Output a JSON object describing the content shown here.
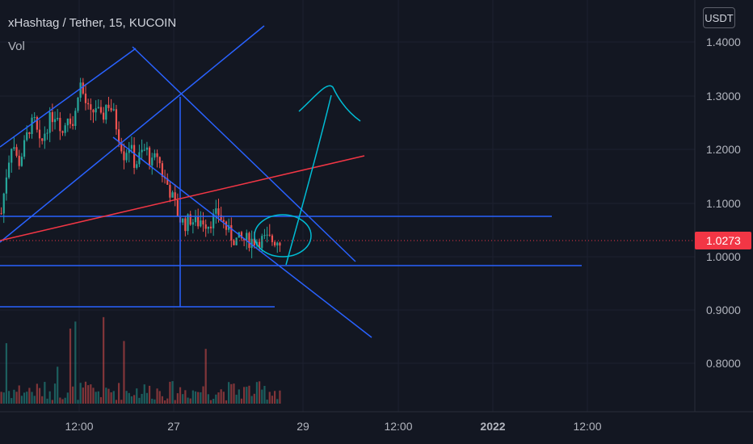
{
  "header": {
    "title": "xHashtag / Tether, 15, KUCOIN",
    "volume_label": "Vol",
    "currency": "USDT"
  },
  "colors": {
    "background": "#131722",
    "up": "#26a69a",
    "down": "#ef5350",
    "drawing_blue": "#2962ff",
    "drawing_red": "#f23645",
    "drawing_cyan": "#00bcd4",
    "axis_text": "#b2b5be"
  },
  "chart_data": {
    "type": "candlestick",
    "symbol": "xHashtag / Tether",
    "interval": "15",
    "exchange": "KUCOIN",
    "y_axis": {
      "ticks": [
        "1.4000",
        "1.3000",
        "1.2000",
        "1.1000",
        "1.0000",
        "0.9000",
        "0.8000"
      ],
      "range": [
        0.74,
        1.45
      ]
    },
    "x_axis": {
      "ticks": [
        "12:00",
        "27",
        "29",
        "12:00",
        "2022",
        "12:00"
      ]
    },
    "last_price": {
      "label": "1.0273",
      "value": 1.0273
    },
    "price_path_approx": [
      [
        0,
        1.08
      ],
      [
        0.02,
        1.16
      ],
      [
        0.04,
        1.22
      ],
      [
        0.06,
        1.17
      ],
      [
        0.08,
        1.2
      ],
      [
        0.1,
        1.24
      ],
      [
        0.12,
        1.25
      ],
      [
        0.14,
        1.2
      ],
      [
        0.16,
        1.24
      ],
      [
        0.18,
        1.26
      ],
      [
        0.2,
        1.27
      ],
      [
        0.22,
        1.23
      ],
      [
        0.24,
        1.27
      ],
      [
        0.26,
        1.24
      ],
      [
        0.28,
        1.33
      ],
      [
        0.3,
        1.29
      ],
      [
        0.32,
        1.26
      ],
      [
        0.34,
        1.28
      ],
      [
        0.36,
        1.25
      ],
      [
        0.38,
        1.29
      ],
      [
        0.4,
        1.27
      ],
      [
        0.42,
        1.23
      ],
      [
        0.44,
        1.19
      ],
      [
        0.46,
        1.21
      ],
      [
        0.48,
        1.17
      ],
      [
        0.5,
        1.19
      ],
      [
        0.52,
        1.2
      ],
      [
        0.54,
        1.17
      ],
      [
        0.56,
        1.19
      ],
      [
        0.58,
        1.15
      ],
      [
        0.6,
        1.13
      ],
      [
        0.62,
        1.1
      ],
      [
        0.64,
        1.07
      ],
      [
        0.66,
        1.06
      ],
      [
        0.68,
        1.07
      ],
      [
        0.7,
        1.06
      ],
      [
        0.72,
        1.07
      ],
      [
        0.74,
        1.06
      ],
      [
        0.76,
        1.07
      ],
      [
        0.78,
        1.08
      ],
      [
        0.8,
        1.06
      ],
      [
        0.82,
        1.04
      ],
      [
        0.84,
        1.03
      ]
    ]
  }
}
